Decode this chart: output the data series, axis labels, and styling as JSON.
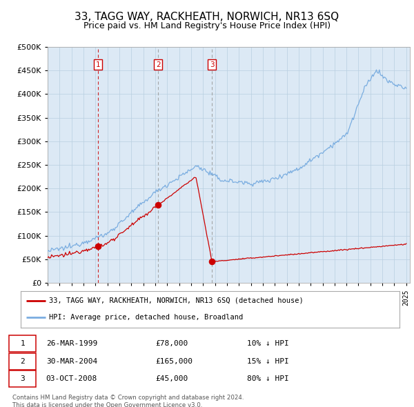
{
  "title": "33, TAGG WAY, RACKHEATH, NORWICH, NR13 6SQ",
  "subtitle": "Price paid vs. HM Land Registry's House Price Index (HPI)",
  "legend_label_red": "33, TAGG WAY, RACKHEATH, NORWICH, NR13 6SQ (detached house)",
  "legend_label_blue": "HPI: Average price, detached house, Broadland",
  "footnote": "Contains HM Land Registry data © Crown copyright and database right 2024.\nThis data is licensed under the Open Government Licence v3.0.",
  "transactions": [
    {
      "num": 1,
      "date": "26-MAR-1999",
      "price": 78000,
      "pct": "10% ↓ HPI",
      "x": 1999.23
    },
    {
      "num": 2,
      "date": "30-MAR-2004",
      "price": 165000,
      "pct": "15% ↓ HPI",
      "x": 2004.25
    },
    {
      "num": 3,
      "date": "03-OCT-2008",
      "price": 45000,
      "pct": "80% ↓ HPI",
      "x": 2008.75
    }
  ],
  "ylim": [
    0,
    500000
  ],
  "yticks": [
    0,
    50000,
    100000,
    150000,
    200000,
    250000,
    300000,
    350000,
    400000,
    450000,
    500000
  ],
  "plot_bg": "#dce9f5",
  "grid_color": "#b8cfe0",
  "red_color": "#cc0000",
  "blue_color": "#7aade0",
  "title_fontsize": 11,
  "subtitle_fontsize": 9,
  "xmin": 1995,
  "xmax": 2025.3
}
